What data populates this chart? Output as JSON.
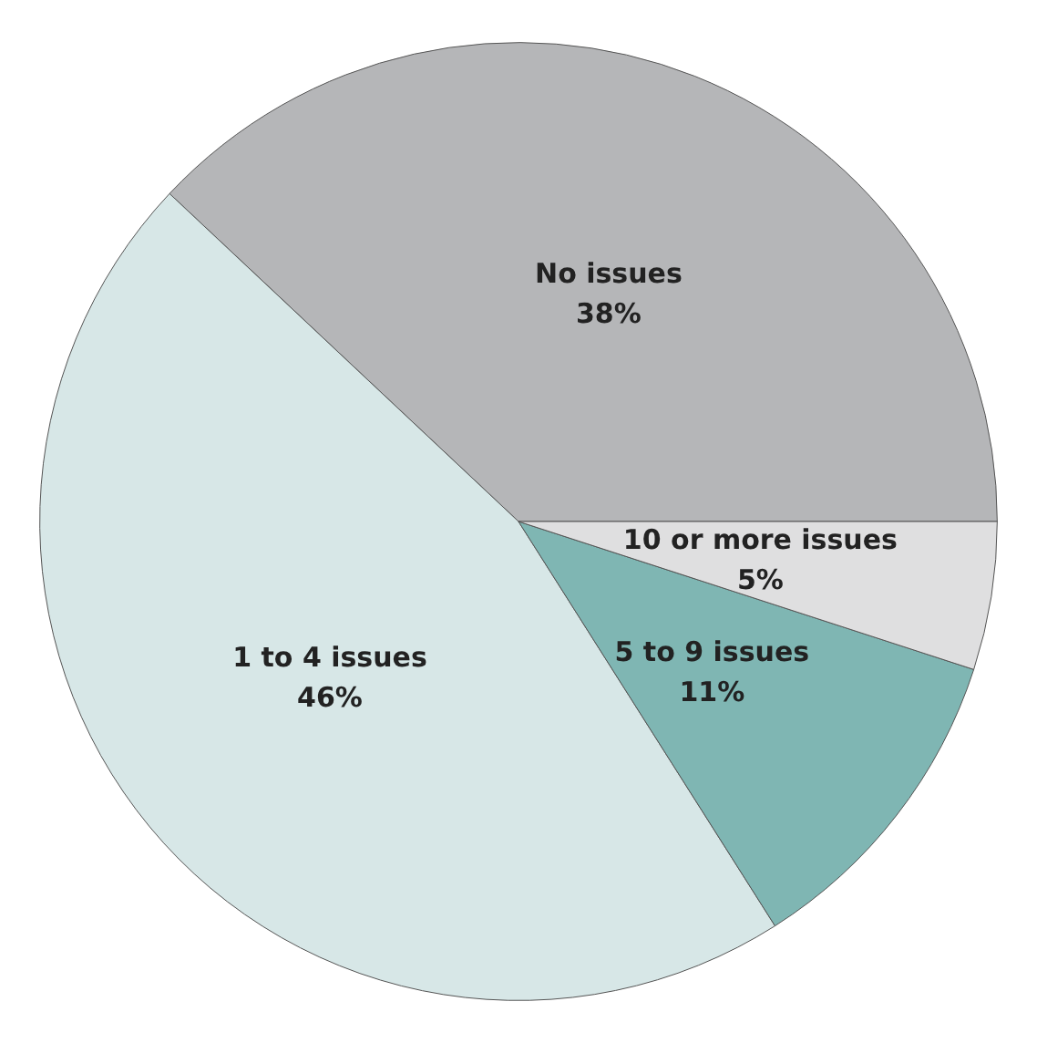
{
  "chart_data": {
    "type": "pie",
    "categories": [
      "No issues",
      "1 to 4 issues",
      "5 to 9 issues",
      "10 or more issues"
    ],
    "values": [
      38,
      46,
      11,
      5
    ],
    "colors": [
      "#b5b6b8",
      "#d7e7e7",
      "#7fb6b3",
      "#dfdfe0"
    ],
    "value_labels": [
      "38%",
      "46%",
      "11%",
      "5%"
    ]
  }
}
